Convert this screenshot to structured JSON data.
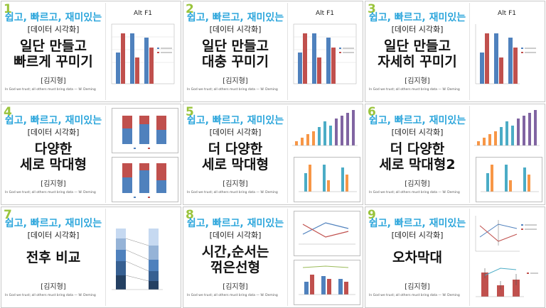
{
  "series": {
    "slogan": "쉽고, 빠르고, 재미있는",
    "subtitle": "[데이터 시각화]",
    "author": "[김지형]",
    "quote": "In God we trust; all others must bring data  — W. Deming"
  },
  "slides": [
    {
      "num": "1",
      "title_lines": [
        "일단 만들고",
        "빠르게 꾸미기"
      ],
      "chart_title": "Alt F1"
    },
    {
      "num": "2",
      "title_lines": [
        "일단 만들고",
        "대충 꾸미기"
      ],
      "chart_title": "Alt F1"
    },
    {
      "num": "3",
      "title_lines": [
        "일단 만들고",
        "자세히 꾸미기"
      ],
      "chart_title": "Alt F1"
    },
    {
      "num": "4",
      "title_lines": [
        "다양한",
        "세로 막대형"
      ]
    },
    {
      "num": "5",
      "title_lines": [
        "더 다양한",
        "세로 막대형"
      ]
    },
    {
      "num": "6",
      "title_lines": [
        "더 다양한",
        "세로 막대형2"
      ]
    },
    {
      "num": "7",
      "title_lines": [
        "전후 비교"
      ]
    },
    {
      "num": "8",
      "title_lines": [
        "시간,순서는",
        "꺾은선형"
      ]
    },
    {
      "num": "9",
      "title_lines": [
        "오차막대"
      ]
    }
  ],
  "colors": {
    "slogan": "#2fa7dc",
    "number": "#9ac43c",
    "blue": "#4f81bd",
    "red": "#c0504d",
    "teal": "#4bacc6",
    "orange": "#f79646",
    "purple": "#8064a2"
  }
}
